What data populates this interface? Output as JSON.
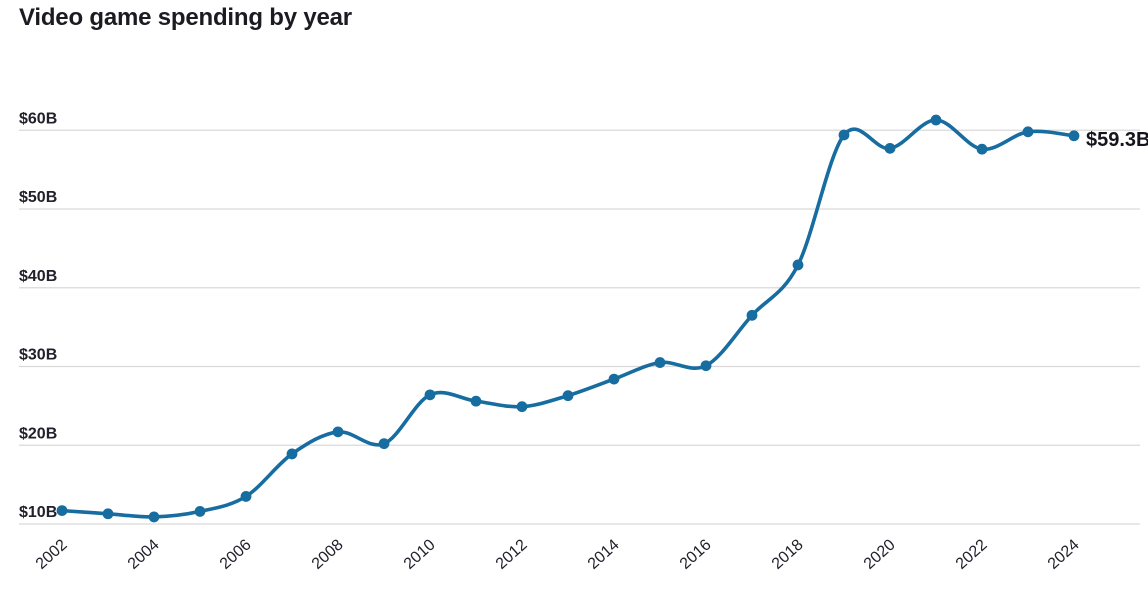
{
  "title": "Video game spending by year",
  "colors": {
    "line": "#176ca0",
    "marker": "#176ca0",
    "grid": "#d9d9d9",
    "text": "#21202b",
    "title_text": "#1c1b22"
  },
  "chart_data": {
    "type": "line",
    "title": "Video game spending by year",
    "unit": "USD billions",
    "x": [
      2002,
      2003,
      2004,
      2005,
      2006,
      2007,
      2008,
      2009,
      2010,
      2011,
      2012,
      2013,
      2014,
      2015,
      2016,
      2017,
      2018,
      2019,
      2020,
      2021,
      2022,
      2023,
      2024
    ],
    "series": [
      {
        "name": "Video game spending",
        "values": [
          11.7,
          11.3,
          10.9,
          11.6,
          13.5,
          18.9,
          21.7,
          20.2,
          26.4,
          25.6,
          24.9,
          26.3,
          28.4,
          30.5,
          30.1,
          36.5,
          42.9,
          59.4,
          57.7,
          61.3,
          57.6,
          59.8,
          59.3
        ]
      }
    ],
    "ylim": [
      10,
      62
    ],
    "ytick_values": [
      10,
      20,
      30,
      40,
      50,
      60
    ],
    "ytick_labels": [
      "$10B",
      "$20B",
      "$30B",
      "$40B",
      "$50B",
      "$60B"
    ],
    "xtick_values": [
      2002,
      2004,
      2006,
      2008,
      2010,
      2012,
      2014,
      2016,
      2018,
      2020,
      2022,
      2024
    ],
    "grid": "horizontal",
    "legend": "none",
    "annotation": {
      "x": 2024,
      "text": "$59.3B"
    }
  }
}
